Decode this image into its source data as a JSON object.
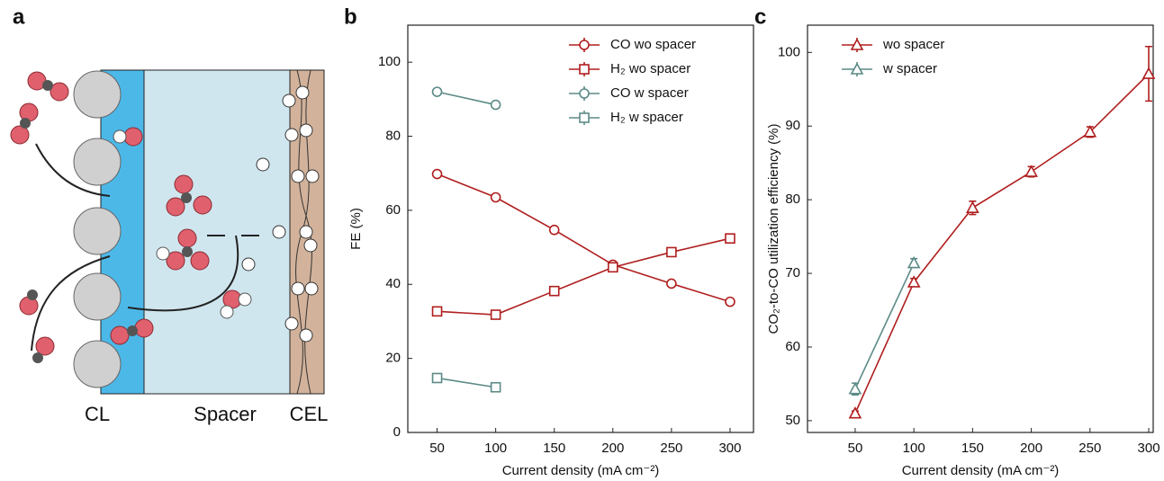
{
  "panel_labels": [
    "a",
    "b",
    "c"
  ],
  "diagram": {
    "labels": [
      "CL",
      "Spacer",
      "CEL"
    ]
  },
  "chart_data": [
    {
      "type": "line",
      "xlabel": "Current density (mA cm⁻²)",
      "ylabel": "FE (%)",
      "xlim": [
        25,
        320
      ],
      "ylim": [
        0,
        110
      ],
      "xticks": [
        50,
        100,
        150,
        200,
        250,
        300
      ],
      "yticks": [
        0,
        20,
        40,
        60,
        80,
        100
      ],
      "grid": false,
      "legend": "upper right",
      "series": [
        {
          "name": "CO wo spacer",
          "color": "#b01e1e",
          "marker": "circle",
          "x": [
            50,
            100,
            150,
            200,
            250,
            300
          ],
          "values": [
            69.8,
            63.5,
            54.7,
            45.3,
            40.2,
            35.3
          ]
        },
        {
          "name": "H₂ wo spacer",
          "color": "#b01e1e",
          "marker": "square",
          "x": [
            50,
            100,
            150,
            200,
            250,
            300
          ],
          "values": [
            32.7,
            31.8,
            38.2,
            44.6,
            48.7,
            52.4
          ]
        },
        {
          "name": "CO w spacer",
          "color": "#5b8a86",
          "marker": "circle",
          "x": [
            50,
            100
          ],
          "values": [
            92.0,
            88.5
          ]
        },
        {
          "name": "H₂ w spacer",
          "color": "#5b8a86",
          "marker": "square",
          "x": [
            50,
            100
          ],
          "values": [
            14.7,
            12.2
          ]
        }
      ]
    },
    {
      "type": "line",
      "xlabel": "Current density (mA cm⁻²)",
      "ylabel": "CO₂-to-CO utilization efficiency (%)",
      "xlim": [
        9.4,
        303.8
      ],
      "ylim": [
        48.4,
        103.7
      ],
      "xticks": [
        50,
        100,
        150,
        200,
        250,
        300
      ],
      "yticks": [
        50,
        60,
        70,
        80,
        90,
        100
      ],
      "grid": false,
      "legend": "upper left",
      "series": [
        {
          "name": "wo spacer",
          "color": "#b01e1e",
          "marker": "triangle",
          "x": [
            50,
            100,
            150,
            200,
            250,
            300
          ],
          "values": [
            51.0,
            68.8,
            78.9,
            83.8,
            89.2,
            97.1
          ],
          "errors": [
            0.3,
            0.5,
            0.9,
            0.7,
            0.7,
            3.7
          ]
        },
        {
          "name": "w spacer",
          "color": "#5b8a86",
          "marker": "triangle",
          "x": [
            50,
            100
          ],
          "values": [
            54.3,
            71.4
          ],
          "errors": [
            0.8,
            0.6
          ]
        }
      ]
    }
  ]
}
